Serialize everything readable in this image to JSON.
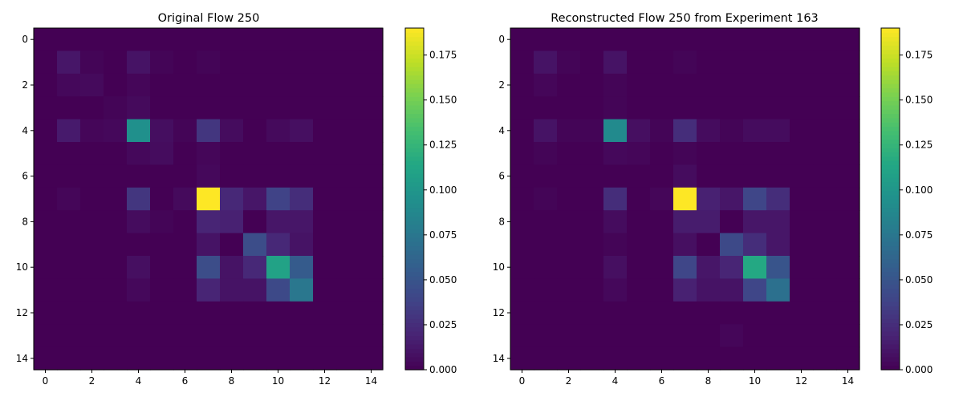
{
  "colormap": "viridis",
  "chart_data": [
    {
      "type": "heatmap",
      "title": "Original Flow 250",
      "xlabel": "",
      "ylabel": "",
      "x_ticks": [
        0,
        2,
        4,
        6,
        8,
        10,
        12,
        14
      ],
      "y_ticks": [
        0,
        2,
        4,
        6,
        8,
        10,
        12,
        14
      ],
      "xlim": [
        -0.5,
        14.5
      ],
      "ylim": [
        14.5,
        -0.5
      ],
      "colorbar": {
        "range": [
          0,
          0.19
        ],
        "ticks": [
          "0.000",
          "0.025",
          "0.050",
          "0.075",
          "0.100",
          "0.125",
          "0.150",
          "0.175"
        ]
      },
      "matrix": [
        [
          0,
          0,
          0,
          0,
          0,
          0,
          0,
          0,
          0,
          0,
          0,
          0,
          0,
          0,
          0
        ],
        [
          0,
          0.012,
          0.002,
          0,
          0.01,
          0.002,
          0,
          0.002,
          0,
          0,
          0,
          0,
          0,
          0,
          0
        ],
        [
          0,
          0.004,
          0.005,
          0,
          0.003,
          0,
          0,
          0,
          0,
          0,
          0,
          0,
          0,
          0,
          0
        ],
        [
          0,
          0,
          0,
          0.002,
          0.005,
          0,
          0,
          0,
          0,
          0,
          0,
          0,
          0,
          0,
          0
        ],
        [
          0,
          0.014,
          0.003,
          0.004,
          0.095,
          0.007,
          0.002,
          0.03,
          0.006,
          0,
          0.005,
          0.008,
          0,
          0,
          0
        ],
        [
          0,
          0,
          0,
          0,
          0.004,
          0.006,
          0,
          0.003,
          0,
          0,
          0,
          0,
          0,
          0,
          0
        ],
        [
          0,
          0,
          0,
          0,
          0,
          0,
          0,
          0.004,
          0,
          0,
          0,
          0,
          0,
          0,
          0
        ],
        [
          0,
          0.003,
          0,
          0,
          0.03,
          0,
          0.005,
          0.19,
          0.022,
          0.012,
          0.038,
          0.025,
          0,
          0,
          0
        ],
        [
          0,
          0,
          0,
          0,
          0.006,
          0.002,
          0,
          0.02,
          0.018,
          0,
          0.012,
          0.012,
          0,
          0,
          0
        ],
        [
          0,
          0,
          0,
          0,
          0,
          0,
          0,
          0.01,
          0,
          0.045,
          0.022,
          0.01,
          0,
          0,
          0
        ],
        [
          0,
          0,
          0,
          0,
          0.008,
          0,
          0,
          0.045,
          0.01,
          0.022,
          0.11,
          0.055,
          0,
          0,
          0
        ],
        [
          0,
          0,
          0,
          0,
          0.004,
          0,
          0,
          0.02,
          0.01,
          0.01,
          0.042,
          0.075,
          0,
          0,
          0
        ],
        [
          0,
          0,
          0,
          0,
          0,
          0,
          0,
          0,
          0,
          0,
          0,
          0,
          0,
          0,
          0
        ],
        [
          0,
          0,
          0,
          0,
          0,
          0,
          0,
          0,
          0,
          0,
          0,
          0,
          0,
          0,
          0
        ],
        [
          0,
          0,
          0,
          0,
          0,
          0,
          0,
          0,
          0,
          0,
          0,
          0,
          0,
          0,
          0
        ]
      ]
    },
    {
      "type": "heatmap",
      "title": "Reconstructed Flow 250 from Experiment 163",
      "xlabel": "",
      "ylabel": "",
      "x_ticks": [
        0,
        2,
        4,
        6,
        8,
        10,
        12,
        14
      ],
      "y_ticks": [
        0,
        2,
        4,
        6,
        8,
        10,
        12,
        14
      ],
      "xlim": [
        -0.5,
        14.5
      ],
      "ylim": [
        14.5,
        -0.5
      ],
      "colorbar": {
        "range": [
          0,
          0.19
        ],
        "ticks": [
          "0.000",
          "0.025",
          "0.050",
          "0.075",
          "0.100",
          "0.125",
          "0.150",
          "0.175"
        ]
      },
      "matrix": [
        [
          0,
          0,
          0,
          0,
          0,
          0,
          0,
          0,
          0,
          0,
          0,
          0,
          0,
          0,
          0
        ],
        [
          0,
          0.01,
          0.002,
          0,
          0.01,
          0,
          0,
          0.002,
          0,
          0,
          0,
          0,
          0,
          0,
          0
        ],
        [
          0,
          0.003,
          0,
          0,
          0.002,
          0,
          0,
          0,
          0,
          0,
          0,
          0,
          0,
          0,
          0
        ],
        [
          0,
          0,
          0,
          0,
          0.002,
          0,
          0,
          0,
          0,
          0,
          0,
          0,
          0,
          0,
          0
        ],
        [
          0,
          0.01,
          0.002,
          0.002,
          0.09,
          0.008,
          0.002,
          0.025,
          0.006,
          0.002,
          0.006,
          0.006,
          0,
          0,
          0
        ],
        [
          0,
          0.002,
          0,
          0,
          0.004,
          0.003,
          0,
          0.002,
          0,
          0,
          0,
          0,
          0,
          0,
          0
        ],
        [
          0,
          0,
          0,
          0,
          0,
          0,
          0,
          0.006,
          0,
          0,
          0,
          0,
          0,
          0,
          0
        ],
        [
          0,
          0.002,
          0,
          0,
          0.025,
          0,
          0.003,
          0.19,
          0.018,
          0.012,
          0.04,
          0.025,
          0,
          0,
          0
        ],
        [
          0,
          0,
          0,
          0,
          0.006,
          0,
          0,
          0.015,
          0.015,
          0,
          0.012,
          0.012,
          0,
          0,
          0
        ],
        [
          0,
          0,
          0,
          0,
          0.002,
          0,
          0,
          0.008,
          0,
          0.042,
          0.025,
          0.012,
          0,
          0,
          0
        ],
        [
          0,
          0,
          0,
          0,
          0.008,
          0,
          0,
          0.04,
          0.012,
          0.02,
          0.115,
          0.05,
          0,
          0,
          0
        ],
        [
          0,
          0,
          0,
          0,
          0.004,
          0,
          0,
          0.018,
          0.01,
          0.01,
          0.04,
          0.07,
          0,
          0,
          0
        ],
        [
          0,
          0,
          0,
          0,
          0,
          0,
          0,
          0,
          0,
          0,
          0,
          0,
          0,
          0,
          0
        ],
        [
          0,
          0,
          0,
          0,
          0,
          0,
          0,
          0,
          0,
          0.003,
          0,
          0,
          0,
          0,
          0
        ],
        [
          0,
          0,
          0,
          0,
          0,
          0,
          0,
          0,
          0,
          0,
          0,
          0,
          0,
          0,
          0
        ]
      ]
    }
  ]
}
